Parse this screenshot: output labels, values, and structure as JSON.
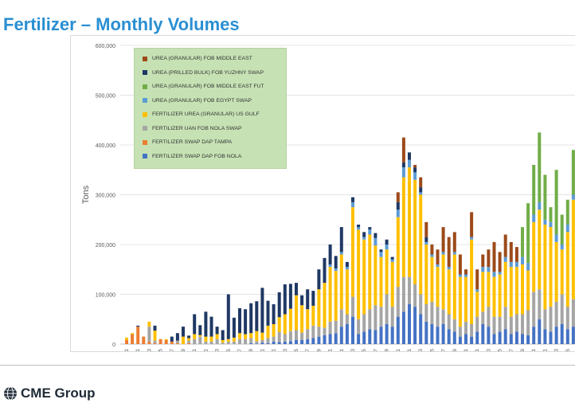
{
  "page": {
    "title": "Fertilizer – Monthly Volumes",
    "footer_brand": "CME Group"
  },
  "chart_data": {
    "type": "bar",
    "stacked": true,
    "ylabel": "Tons",
    "ylim": [
      0,
      600000
    ],
    "yticks": [
      0,
      100000,
      200000,
      300000,
      400000,
      500000,
      600000
    ],
    "ytick_labels": [
      "0",
      "100,000",
      "200,000",
      "300,000",
      "400,000",
      "500,000",
      "600,000"
    ],
    "legend_position": "top-left",
    "x_tick_labels": [
      "201111",
      "201201",
      "201203",
      "201205",
      "201207",
      "201209",
      "201211",
      "201301",
      "201303",
      "201305",
      "201307",
      "201309",
      "201311",
      "201401",
      "201403",
      "201405",
      "201407",
      "201409",
      "201411",
      "201501",
      "201503",
      "201505",
      "201507",
      "201509",
      "201511",
      "201601",
      "201603",
      "201605",
      "201607",
      "201609",
      "201611",
      "201701",
      "201703",
      "201705",
      "201707",
      "201709",
      "201711",
      "201801",
      "201803",
      "201805"
    ],
    "x": [
      "201111",
      "201112",
      "201201",
      "201202",
      "201203",
      "201204",
      "201205",
      "201206",
      "201207",
      "201208",
      "201209",
      "201210",
      "201211",
      "201212",
      "201301",
      "201302",
      "201303",
      "201304",
      "201305",
      "201306",
      "201307",
      "201308",
      "201309",
      "201310",
      "201311",
      "201312",
      "201401",
      "201402",
      "201403",
      "201404",
      "201405",
      "201406",
      "201407",
      "201408",
      "201409",
      "201410",
      "201411",
      "201412",
      "201501",
      "201502",
      "201503",
      "201504",
      "201505",
      "201506",
      "201507",
      "201508",
      "201509",
      "201510",
      "201511",
      "201512",
      "201601",
      "201602",
      "201603",
      "201604",
      "201605",
      "201606",
      "201607",
      "201608",
      "201609",
      "201610",
      "201611",
      "201612",
      "201701",
      "201702",
      "201703",
      "201704",
      "201705",
      "201706",
      "201707",
      "201708",
      "201709",
      "201710",
      "201711",
      "201712",
      "201801",
      "201802",
      "201803",
      "201804",
      "201805",
      "201806"
    ],
    "series": [
      {
        "name": "FERTILIZER SWAP DAP FOB NOLA",
        "color": "#4472c4",
        "values": [
          0,
          0,
          0,
          0,
          0,
          0,
          0,
          0,
          0,
          0,
          0,
          0,
          0,
          0,
          0,
          0,
          0,
          0,
          0,
          0,
          0,
          0,
          2000,
          1000,
          3000,
          2000,
          5000,
          4000,
          5000,
          6000,
          8000,
          8000,
          10000,
          12000,
          15000,
          18000,
          20000,
          22000,
          35000,
          40000,
          55000,
          20000,
          25000,
          30000,
          28000,
          35000,
          40000,
          35000,
          55000,
          65000,
          80000,
          75000,
          60000,
          45000,
          40000,
          35000,
          40000,
          30000,
          25000,
          15000,
          20000,
          15000,
          25000,
          40000,
          35000,
          20000,
          25000,
          30000,
          20000,
          25000,
          20000,
          18000,
          35000,
          50000,
          30000,
          25000,
          35000,
          40000,
          30000,
          35000
        ]
      },
      {
        "name": "FERTILIZER SWAP DAP TAMPA",
        "color": "#ed7d31",
        "values": [
          8000,
          20000,
          35000,
          15000,
          5000,
          2000,
          10000,
          8000,
          5000,
          2000,
          0,
          2000,
          0,
          0,
          0,
          0,
          0,
          0,
          0,
          0,
          0,
          0,
          0,
          0,
          0,
          0,
          0,
          0,
          0,
          0,
          0,
          0,
          0,
          0,
          0,
          0,
          0,
          0,
          0,
          0,
          0,
          0,
          0,
          0,
          0,
          0,
          0,
          0,
          0,
          0,
          0,
          0,
          0,
          0,
          0,
          0,
          0,
          0,
          0,
          0,
          0,
          0,
          0,
          0,
          0,
          0,
          0,
          0,
          0,
          0,
          0,
          0,
          0,
          0,
          0,
          0,
          0,
          0,
          0,
          0
        ]
      },
      {
        "name": "FERTILIZER UAN FOB NOLA SWAP",
        "color": "#a5a5a5",
        "values": [
          0,
          0,
          0,
          0,
          30000,
          5000,
          0,
          0,
          0,
          5000,
          0,
          5000,
          10000,
          15000,
          5000,
          5000,
          10000,
          3000,
          5000,
          5000,
          10000,
          10000,
          10000,
          5000,
          5000,
          10000,
          10000,
          20000,
          15000,
          20000,
          20000,
          15000,
          20000,
          25000,
          20000,
          15000,
          25000,
          25000,
          35000,
          20000,
          40000,
          30000,
          35000,
          40000,
          50000,
          40000,
          60000,
          40000,
          60000,
          70000,
          55000,
          45000,
          40000,
          35000,
          45000,
          40000,
          30000,
          30000,
          25000,
          20000,
          25000,
          25000,
          30000,
          25000,
          40000,
          35000,
          30000,
          45000,
          35000,
          35000,
          40000,
          50000,
          70000,
          60000,
          40000,
          50000,
          50000,
          60000,
          45000,
          55000
        ]
      },
      {
        "name": "FERTILIZER UREA (GRANULAR) US GULF",
        "color": "#ffc000",
        "values": [
          5000,
          2000,
          0,
          0,
          10000,
          20000,
          0,
          2000,
          0,
          0,
          15000,
          5000,
          10000,
          3000,
          10000,
          10000,
          10000,
          5000,
          5000,
          8000,
          12000,
          10000,
          10000,
          20000,
          15000,
          25000,
          25000,
          30000,
          40000,
          45000,
          70000,
          55000,
          40000,
          40000,
          75000,
          90000,
          110000,
          100000,
          110000,
          90000,
          180000,
          180000,
          150000,
          150000,
          120000,
          100000,
          90000,
          90000,
          140000,
          200000,
          220000,
          210000,
          200000,
          120000,
          90000,
          80000,
          110000,
          90000,
          130000,
          100000,
          90000,
          170000,
          50000,
          80000,
          70000,
          80000,
          85000,
          90000,
          100000,
          95000,
          100000,
          80000,
          140000,
          160000,
          170000,
          160000,
          120000,
          90000,
          150000,
          200000
        ]
      },
      {
        "name": "UREA (GRANULAR) FOB EGYPT SWAP",
        "color": "#5b9bd5",
        "values": [
          0,
          0,
          0,
          0,
          0,
          0,
          0,
          0,
          0,
          0,
          0,
          0,
          0,
          0,
          0,
          0,
          0,
          0,
          0,
          0,
          0,
          0,
          0,
          0,
          0,
          0,
          0,
          0,
          0,
          0,
          0,
          0,
          0,
          0,
          0,
          0,
          5000,
          5000,
          5000,
          5000,
          10000,
          5000,
          5000,
          10000,
          15000,
          10000,
          10000,
          5000,
          15000,
          20000,
          15000,
          15000,
          5000,
          5000,
          5000,
          5000,
          5000,
          5000,
          5000,
          5000,
          5000,
          5000,
          5000,
          10000,
          10000,
          10000,
          5000,
          10000,
          10000,
          10000,
          15000,
          15000,
          15000,
          15000,
          10000,
          10000,
          15000,
          10000,
          15000,
          10000
        ]
      },
      {
        "name": "UREA (GRANULAR) FOB MIDDLE EAST FUT",
        "color": "#70ad47",
        "values": [
          0,
          0,
          0,
          0,
          0,
          0,
          0,
          0,
          0,
          0,
          0,
          0,
          0,
          0,
          0,
          0,
          0,
          0,
          0,
          0,
          0,
          0,
          0,
          0,
          0,
          0,
          0,
          0,
          0,
          0,
          0,
          0,
          0,
          0,
          0,
          0,
          0,
          0,
          0,
          0,
          0,
          0,
          0,
          0,
          0,
          0,
          0,
          0,
          0,
          0,
          0,
          0,
          0,
          0,
          0,
          0,
          0,
          0,
          0,
          0,
          0,
          0,
          0,
          0,
          0,
          0,
          0,
          0,
          0,
          0,
          60000,
          120000,
          100000,
          140000,
          90000,
          30000,
          130000,
          60000,
          50000,
          90000
        ]
      },
      {
        "name": "UREA (PRILLED BULK) FOB YUZHNY SWAP",
        "color": "#1f3864",
        "values": [
          0,
          0,
          2000,
          0,
          0,
          10000,
          0,
          0,
          10000,
          15000,
          20000,
          5000,
          40000,
          20000,
          50000,
          40000,
          15000,
          20000,
          90000,
          40000,
          50000,
          50000,
          60000,
          60000,
          90000,
          50000,
          40000,
          50000,
          60000,
          50000,
          25000,
          20000,
          40000,
          30000,
          40000,
          50000,
          40000,
          25000,
          50000,
          10000,
          10000,
          5000,
          10000,
          5000,
          10000,
          5000,
          10000,
          5000,
          15000,
          10000,
          15000,
          10000,
          10000,
          10000,
          0,
          0,
          0,
          0,
          0,
          0,
          0,
          0,
          0,
          0,
          0,
          0,
          0,
          0,
          0,
          0,
          0,
          0,
          0,
          0,
          0,
          0,
          0,
          0,
          0,
          0
        ]
      },
      {
        "name": "UREA (GRANULAR) FOB MIDDLE EAST",
        "color": "#9c4a1a",
        "values": [
          0,
          0,
          0,
          0,
          0,
          0,
          0,
          0,
          0,
          0,
          0,
          0,
          0,
          0,
          0,
          0,
          0,
          0,
          0,
          0,
          0,
          0,
          0,
          0,
          0,
          0,
          0,
          0,
          0,
          0,
          0,
          0,
          0,
          0,
          0,
          0,
          0,
          0,
          0,
          0,
          0,
          0,
          0,
          0,
          0,
          0,
          0,
          0,
          20000,
          50000,
          0,
          5000,
          20000,
          30000,
          20000,
          30000,
          50000,
          60000,
          40000,
          40000,
          10000,
          50000,
          40000,
          25000,
          35000,
          60000,
          40000,
          45000,
          40000,
          30000,
          0,
          0,
          0,
          0,
          0,
          0,
          0,
          0,
          0,
          0
        ]
      }
    ]
  }
}
